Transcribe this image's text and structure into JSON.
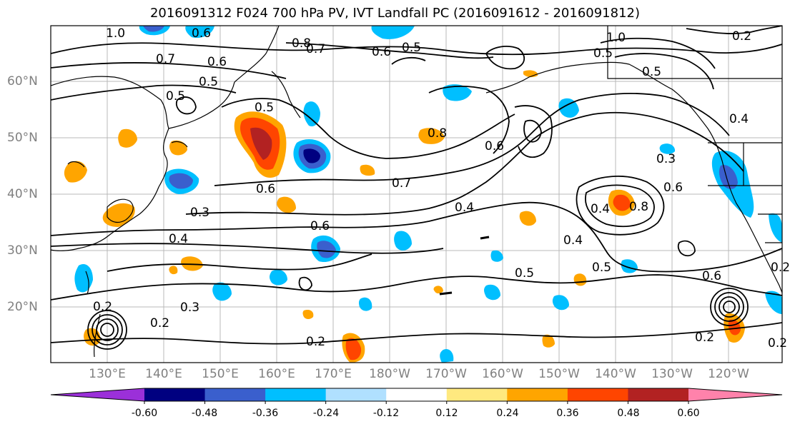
{
  "title": "2016091312 F024 700 hPa PV, IVT Landfall PC (2016091612 - 2016091812)",
  "lat_labels": [
    "60°N",
    "50°N",
    "40°N",
    "30°N",
    "20°N"
  ],
  "lon_labels": [
    "130°E",
    "140°E",
    "150°E",
    "160°E",
    "170°E",
    "180°W",
    "170°W",
    "160°W",
    "150°W",
    "140°W",
    "130°W",
    "120°W"
  ],
  "colorbar": {
    "ticks": [
      "-0.60",
      "-0.48",
      "-0.36",
      "-0.24",
      "-0.12",
      "0.12",
      "0.24",
      "0.36",
      "0.48",
      "0.60"
    ],
    "colors": [
      "#9b30d9",
      "#000080",
      "#3a5fcd",
      "#00bfff",
      "#b0e0ff",
      "#ffffff",
      "#ffe97f",
      "#ffa500",
      "#ff4500",
      "#b22222",
      "#ff82ab"
    ]
  },
  "contour_labels": [
    "1.0",
    "0.6",
    "0.8",
    "0.7",
    "0.6",
    "0.5",
    "0.7",
    "0.6",
    "0.5",
    "0.5",
    "0.5",
    "0.8",
    "0.6",
    "0.7",
    "0.6",
    "0.4",
    "0.3",
    "0.6",
    "0.4",
    "0.8",
    "0.4",
    "0.5",
    "0.5",
    "0.5",
    "0.3",
    "0.2",
    "0.3",
    "0.2",
    "0.2",
    "0.2",
    "0.2",
    "1.0",
    "0.5",
    "0.4",
    "0.4",
    "0.6",
    "0.6",
    "0.2",
    "0.2"
  ]
}
